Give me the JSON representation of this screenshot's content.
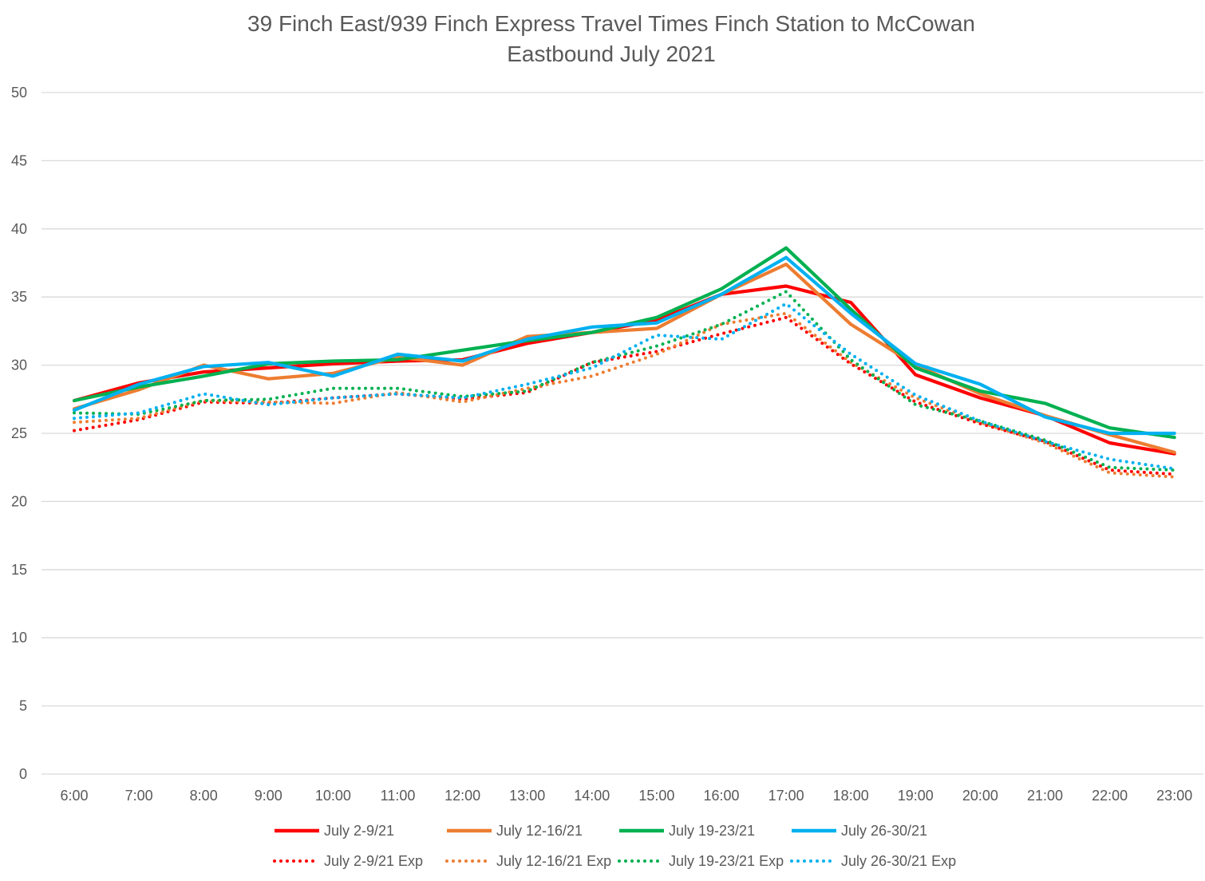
{
  "chart_data": {
    "type": "line",
    "title": "39 Finch East/939 Finch Express Travel Times Finch Station to McCowan",
    "subtitle": "Eastbound  July 2021",
    "xlabel": "",
    "ylabel": "",
    "ylim": [
      0,
      50
    ],
    "yticks": [
      0,
      5,
      10,
      15,
      20,
      25,
      30,
      35,
      40,
      45,
      50
    ],
    "grid": true,
    "legend_position": "bottom",
    "categories": [
      "6:00",
      "7:00",
      "8:00",
      "9:00",
      "10:00",
      "11:00",
      "12:00",
      "13:00",
      "14:00",
      "15:00",
      "16:00",
      "17:00",
      "18:00",
      "19:00",
      "20:00",
      "21:00",
      "22:00",
      "23:00"
    ],
    "series": [
      {
        "name": "July 2-9/21",
        "color": "#ff0000",
        "style": "solid",
        "values": [
          27.4,
          28.7,
          29.5,
          29.8,
          30.1,
          30.3,
          30.4,
          31.6,
          32.4,
          33.3,
          35.2,
          35.8,
          34.6,
          29.3,
          27.6,
          26.3,
          24.3,
          23.5
        ]
      },
      {
        "name": "July 12-16/21",
        "color": "#ed7d31",
        "style": "solid",
        "values": [
          26.8,
          28.2,
          30.0,
          29.0,
          29.4,
          30.6,
          30.0,
          32.1,
          32.4,
          32.7,
          35.2,
          37.4,
          33.0,
          30.0,
          27.9,
          26.3,
          24.9,
          23.6
        ]
      },
      {
        "name": "July 19-23/21",
        "color": "#00b050",
        "style": "solid",
        "values": [
          27.4,
          28.4,
          29.2,
          30.1,
          30.3,
          30.4,
          31.1,
          31.8,
          32.4,
          33.5,
          35.6,
          38.6,
          34.1,
          29.8,
          28.1,
          27.2,
          25.4,
          24.7
        ]
      },
      {
        "name": "July 26-30/21",
        "color": "#00b0f0",
        "style": "solid",
        "values": [
          26.7,
          28.6,
          29.9,
          30.2,
          29.2,
          30.8,
          30.3,
          31.9,
          32.8,
          33.1,
          35.2,
          37.9,
          33.8,
          30.1,
          28.6,
          26.2,
          25.0,
          25.0
        ]
      },
      {
        "name": "July 2-9/21 Exp",
        "color": "#ff0000",
        "style": "dotted",
        "values": [
          25.2,
          26.0,
          27.3,
          27.2,
          27.6,
          27.9,
          27.5,
          28.0,
          30.2,
          31.0,
          32.3,
          33.5,
          30.1,
          27.3,
          25.7,
          24.4,
          22.3,
          22.0
        ]
      },
      {
        "name": "July 12-16/21 Exp",
        "color": "#ed7d31",
        "style": "dotted",
        "values": [
          25.8,
          26.1,
          27.4,
          27.3,
          27.2,
          28.0,
          27.3,
          28.3,
          29.2,
          30.8,
          33.0,
          33.8,
          30.2,
          27.6,
          25.8,
          24.3,
          22.1,
          21.8
        ]
      },
      {
        "name": "July 19-23/21 Exp",
        "color": "#00b050",
        "style": "dotted",
        "values": [
          26.5,
          26.4,
          27.4,
          27.5,
          28.3,
          28.3,
          27.7,
          28.1,
          30.2,
          31.4,
          33.0,
          35.4,
          30.4,
          27.1,
          25.9,
          24.5,
          22.5,
          22.3
        ]
      },
      {
        "name": "July 26-30/21 Exp",
        "color": "#00b0f0",
        "style": "dotted",
        "values": [
          26.1,
          26.5,
          27.9,
          27.1,
          27.6,
          27.9,
          27.6,
          28.6,
          29.8,
          32.2,
          31.9,
          34.5,
          30.8,
          27.8,
          25.9,
          24.4,
          23.1,
          22.4
        ]
      }
    ]
  }
}
